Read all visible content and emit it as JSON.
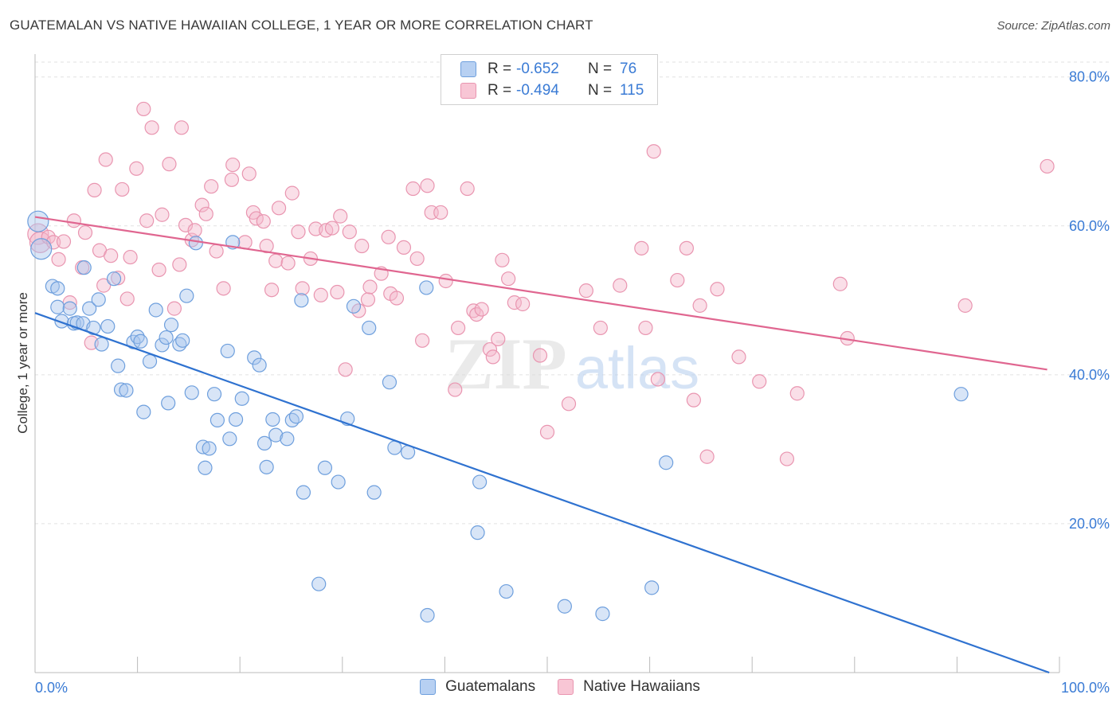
{
  "header": {
    "title": "GUATEMALAN VS NATIVE HAWAIIAN COLLEGE, 1 YEAR OR MORE CORRELATION CHART",
    "source": "Source: ZipAtlas.com"
  },
  "legend": {
    "rows": [
      {
        "r_label": "R =",
        "r_value": "-0.652",
        "n_label": "N =",
        "n_value": "76"
      },
      {
        "r_label": "R =",
        "r_value": "-0.494",
        "n_label": "N =",
        "n_value": "115"
      }
    ]
  },
  "bottom_legend": [
    "Guatemalans",
    "Native Hawaiians"
  ],
  "watermark": {
    "zip": "ZIP",
    "atlas": "atlas"
  },
  "colors": {
    "blue_fill": "#a9c6ee",
    "blue_stroke": "#6e9fdd",
    "blue_line": "#2f72d0",
    "pink_fill": "#f5b8cb",
    "pink_stroke": "#e995b0",
    "pink_line": "#e06690",
    "tick_label": "#3a7bd5",
    "grid": "#e2e2e2"
  },
  "chart_data": {
    "type": "scatter",
    "title": "GUATEMALAN VS NATIVE HAWAIIAN COLLEGE, 1 YEAR OR MORE CORRELATION CHART",
    "xlabel": "",
    "ylabel": "College, 1 year or more",
    "xlim": [
      0,
      100
    ],
    "ylim": [
      0,
      82
    ],
    "x_tick_labels": [
      "0.0%",
      "100.0%"
    ],
    "y_ticks": [
      20,
      40,
      60,
      80
    ],
    "y_tick_labels": [
      "20.0%",
      "40.0%",
      "60.0%",
      "80.0%"
    ],
    "grid": "horizontal dashed",
    "legend_position": "top-center",
    "series": [
      {
        "name": "Guatemalans",
        "r": -0.652,
        "n": 76,
        "trend": {
          "x": [
            0,
            99
          ],
          "y": [
            48.3,
            0
          ]
        },
        "points": [
          {
            "x": 0.3,
            "y": 60.6,
            "big": true
          },
          {
            "x": 0.6,
            "y": 56.9,
            "big": true
          },
          {
            "x": 1.7,
            "y": 51.9
          },
          {
            "x": 2.2,
            "y": 51.6
          },
          {
            "x": 2.2,
            "y": 49.1
          },
          {
            "x": 2.6,
            "y": 47.2
          },
          {
            "x": 3.4,
            "y": 48.9
          },
          {
            "x": 3.8,
            "y": 46.9
          },
          {
            "x": 4.1,
            "y": 47.0
          },
          {
            "x": 4.7,
            "y": 46.9
          },
          {
            "x": 4.8,
            "y": 54.4
          },
          {
            "x": 5.3,
            "y": 48.9
          },
          {
            "x": 5.7,
            "y": 46.3
          },
          {
            "x": 6.2,
            "y": 50.1
          },
          {
            "x": 6.5,
            "y": 44.1
          },
          {
            "x": 7.1,
            "y": 46.5
          },
          {
            "x": 7.7,
            "y": 52.9
          },
          {
            "x": 8.1,
            "y": 41.2
          },
          {
            "x": 8.4,
            "y": 38.0
          },
          {
            "x": 8.9,
            "y": 37.9
          },
          {
            "x": 9.6,
            "y": 44.4
          },
          {
            "x": 10.0,
            "y": 45.1
          },
          {
            "x": 10.3,
            "y": 44.5
          },
          {
            "x": 10.6,
            "y": 35.0
          },
          {
            "x": 11.2,
            "y": 41.8
          },
          {
            "x": 11.8,
            "y": 48.7
          },
          {
            "x": 12.4,
            "y": 44.0
          },
          {
            "x": 12.8,
            "y": 45.0
          },
          {
            "x": 13.0,
            "y": 36.2
          },
          {
            "x": 13.3,
            "y": 46.7
          },
          {
            "x": 14.1,
            "y": 44.1
          },
          {
            "x": 14.4,
            "y": 44.6
          },
          {
            "x": 14.8,
            "y": 50.6
          },
          {
            "x": 15.3,
            "y": 37.6
          },
          {
            "x": 15.7,
            "y": 57.7
          },
          {
            "x": 16.4,
            "y": 30.3
          },
          {
            "x": 16.6,
            "y": 27.5
          },
          {
            "x": 17.0,
            "y": 30.1
          },
          {
            "x": 17.5,
            "y": 37.4
          },
          {
            "x": 17.8,
            "y": 33.9
          },
          {
            "x": 18.8,
            "y": 43.2
          },
          {
            "x": 19.0,
            "y": 31.4
          },
          {
            "x": 19.3,
            "y": 57.8
          },
          {
            "x": 19.6,
            "y": 34.0
          },
          {
            "x": 20.2,
            "y": 36.8
          },
          {
            "x": 21.4,
            "y": 42.3
          },
          {
            "x": 21.9,
            "y": 41.3
          },
          {
            "x": 22.4,
            "y": 30.8
          },
          {
            "x": 22.6,
            "y": 27.6
          },
          {
            "x": 23.2,
            "y": 34.0
          },
          {
            "x": 23.5,
            "y": 31.9
          },
          {
            "x": 24.6,
            "y": 31.4
          },
          {
            "x": 25.1,
            "y": 33.9
          },
          {
            "x": 25.5,
            "y": 34.4
          },
          {
            "x": 26.0,
            "y": 50.0
          },
          {
            "x": 26.2,
            "y": 24.2
          },
          {
            "x": 27.7,
            "y": 11.9
          },
          {
            "x": 28.3,
            "y": 27.5
          },
          {
            "x": 29.6,
            "y": 25.6
          },
          {
            "x": 30.5,
            "y": 34.1
          },
          {
            "x": 31.1,
            "y": 49.2
          },
          {
            "x": 32.6,
            "y": 46.3
          },
          {
            "x": 33.1,
            "y": 24.2
          },
          {
            "x": 34.6,
            "y": 39.0
          },
          {
            "x": 35.1,
            "y": 30.2
          },
          {
            "x": 36.4,
            "y": 29.6
          },
          {
            "x": 38.2,
            "y": 51.7
          },
          {
            "x": 38.3,
            "y": 7.7
          },
          {
            "x": 43.2,
            "y": 18.8
          },
          {
            "x": 43.4,
            "y": 25.6
          },
          {
            "x": 46.0,
            "y": 10.9
          },
          {
            "x": 51.7,
            "y": 8.9
          },
          {
            "x": 55.4,
            "y": 7.9
          },
          {
            "x": 60.2,
            "y": 11.4
          },
          {
            "x": 61.6,
            "y": 28.2
          },
          {
            "x": 90.4,
            "y": 37.4
          }
        ]
      },
      {
        "name": "Native Hawaiians",
        "r": -0.494,
        "n": 115,
        "trend": {
          "x": [
            0,
            98.8
          ],
          "y": [
            61.2,
            40.7
          ]
        },
        "points": [
          {
            "x": 0.3,
            "y": 58.9,
            "big": true
          },
          {
            "x": 0.5,
            "y": 57.8,
            "big": true
          },
          {
            "x": 1.3,
            "y": 58.5
          },
          {
            "x": 1.8,
            "y": 57.8
          },
          {
            "x": 2.3,
            "y": 55.5
          },
          {
            "x": 2.8,
            "y": 57.9
          },
          {
            "x": 3.4,
            "y": 49.7
          },
          {
            "x": 3.8,
            "y": 60.7
          },
          {
            "x": 4.6,
            "y": 54.4
          },
          {
            "x": 4.9,
            "y": 59.1
          },
          {
            "x": 5.5,
            "y": 44.3
          },
          {
            "x": 5.8,
            "y": 64.8
          },
          {
            "x": 6.3,
            "y": 56.7
          },
          {
            "x": 6.7,
            "y": 52.0
          },
          {
            "x": 6.9,
            "y": 68.9
          },
          {
            "x": 7.4,
            "y": 56.0
          },
          {
            "x": 8.1,
            "y": 53.0
          },
          {
            "x": 8.5,
            "y": 64.9
          },
          {
            "x": 9.0,
            "y": 50.2
          },
          {
            "x": 9.3,
            "y": 55.8
          },
          {
            "x": 9.9,
            "y": 67.7
          },
          {
            "x": 10.6,
            "y": 75.7
          },
          {
            "x": 10.9,
            "y": 60.7
          },
          {
            "x": 11.4,
            "y": 73.2
          },
          {
            "x": 12.1,
            "y": 54.1
          },
          {
            "x": 12.4,
            "y": 61.5
          },
          {
            "x": 13.1,
            "y": 68.3
          },
          {
            "x": 13.6,
            "y": 48.9
          },
          {
            "x": 14.1,
            "y": 54.8
          },
          {
            "x": 14.3,
            "y": 73.2
          },
          {
            "x": 14.7,
            "y": 60.1
          },
          {
            "x": 15.3,
            "y": 58.1
          },
          {
            "x": 15.6,
            "y": 59.4
          },
          {
            "x": 16.3,
            "y": 62.8
          },
          {
            "x": 16.7,
            "y": 61.6
          },
          {
            "x": 17.2,
            "y": 65.3
          },
          {
            "x": 17.7,
            "y": 56.6
          },
          {
            "x": 18.4,
            "y": 51.6
          },
          {
            "x": 19.2,
            "y": 66.2
          },
          {
            "x": 19.3,
            "y": 68.2
          },
          {
            "x": 20.5,
            "y": 57.8
          },
          {
            "x": 20.9,
            "y": 67.0
          },
          {
            "x": 21.3,
            "y": 61.8
          },
          {
            "x": 21.6,
            "y": 61.0
          },
          {
            "x": 22.3,
            "y": 60.6
          },
          {
            "x": 22.6,
            "y": 57.3
          },
          {
            "x": 23.1,
            "y": 51.4
          },
          {
            "x": 23.5,
            "y": 55.3
          },
          {
            "x": 23.8,
            "y": 62.4
          },
          {
            "x": 24.7,
            "y": 55.0
          },
          {
            "x": 25.1,
            "y": 64.4
          },
          {
            "x": 25.7,
            "y": 59.2
          },
          {
            "x": 26.1,
            "y": 51.6
          },
          {
            "x": 26.9,
            "y": 55.6
          },
          {
            "x": 27.4,
            "y": 59.6
          },
          {
            "x": 27.9,
            "y": 50.7
          },
          {
            "x": 28.4,
            "y": 59.4
          },
          {
            "x": 29.0,
            "y": 59.7
          },
          {
            "x": 29.5,
            "y": 51.1
          },
          {
            "x": 29.8,
            "y": 61.3
          },
          {
            "x": 30.3,
            "y": 40.7
          },
          {
            "x": 30.7,
            "y": 59.2
          },
          {
            "x": 31.6,
            "y": 48.6
          },
          {
            "x": 31.9,
            "y": 57.3
          },
          {
            "x": 32.5,
            "y": 50.1
          },
          {
            "x": 32.7,
            "y": 51.8
          },
          {
            "x": 33.8,
            "y": 53.6
          },
          {
            "x": 34.5,
            "y": 58.5
          },
          {
            "x": 34.7,
            "y": 50.9
          },
          {
            "x": 35.3,
            "y": 50.3
          },
          {
            "x": 36.0,
            "y": 57.1
          },
          {
            "x": 36.9,
            "y": 65.0
          },
          {
            "x": 37.3,
            "y": 55.6
          },
          {
            "x": 37.8,
            "y": 44.6
          },
          {
            "x": 38.3,
            "y": 65.4
          },
          {
            "x": 38.7,
            "y": 61.8
          },
          {
            "x": 39.6,
            "y": 61.8
          },
          {
            "x": 40.1,
            "y": 52.6
          },
          {
            "x": 41.0,
            "y": 38.0
          },
          {
            "x": 41.3,
            "y": 46.3
          },
          {
            "x": 42.2,
            "y": 65.0
          },
          {
            "x": 42.8,
            "y": 48.6
          },
          {
            "x": 43.1,
            "y": 48.1
          },
          {
            "x": 43.6,
            "y": 48.8
          },
          {
            "x": 44.4,
            "y": 43.4
          },
          {
            "x": 44.7,
            "y": 42.4
          },
          {
            "x": 45.2,
            "y": 44.8
          },
          {
            "x": 45.6,
            "y": 55.4
          },
          {
            "x": 46.2,
            "y": 52.9
          },
          {
            "x": 46.8,
            "y": 49.7
          },
          {
            "x": 47.6,
            "y": 49.5
          },
          {
            "x": 49.3,
            "y": 42.6
          },
          {
            "x": 50.0,
            "y": 32.3
          },
          {
            "x": 52.1,
            "y": 36.1
          },
          {
            "x": 53.8,
            "y": 51.3
          },
          {
            "x": 55.2,
            "y": 46.3
          },
          {
            "x": 57.1,
            "y": 52.0
          },
          {
            "x": 59.2,
            "y": 57.0
          },
          {
            "x": 59.6,
            "y": 46.3
          },
          {
            "x": 60.4,
            "y": 70.0
          },
          {
            "x": 60.8,
            "y": 39.4
          },
          {
            "x": 62.7,
            "y": 52.7
          },
          {
            "x": 63.6,
            "y": 57.0
          },
          {
            "x": 64.3,
            "y": 36.6
          },
          {
            "x": 64.9,
            "y": 49.3
          },
          {
            "x": 65.6,
            "y": 29.0
          },
          {
            "x": 66.6,
            "y": 51.5
          },
          {
            "x": 68.7,
            "y": 42.4
          },
          {
            "x": 70.7,
            "y": 39.1
          },
          {
            "x": 73.4,
            "y": 28.7
          },
          {
            "x": 74.4,
            "y": 37.5
          },
          {
            "x": 78.6,
            "y": 52.2
          },
          {
            "x": 79.3,
            "y": 44.9
          },
          {
            "x": 90.8,
            "y": 49.3
          },
          {
            "x": 98.8,
            "y": 68.0
          }
        ]
      }
    ]
  }
}
